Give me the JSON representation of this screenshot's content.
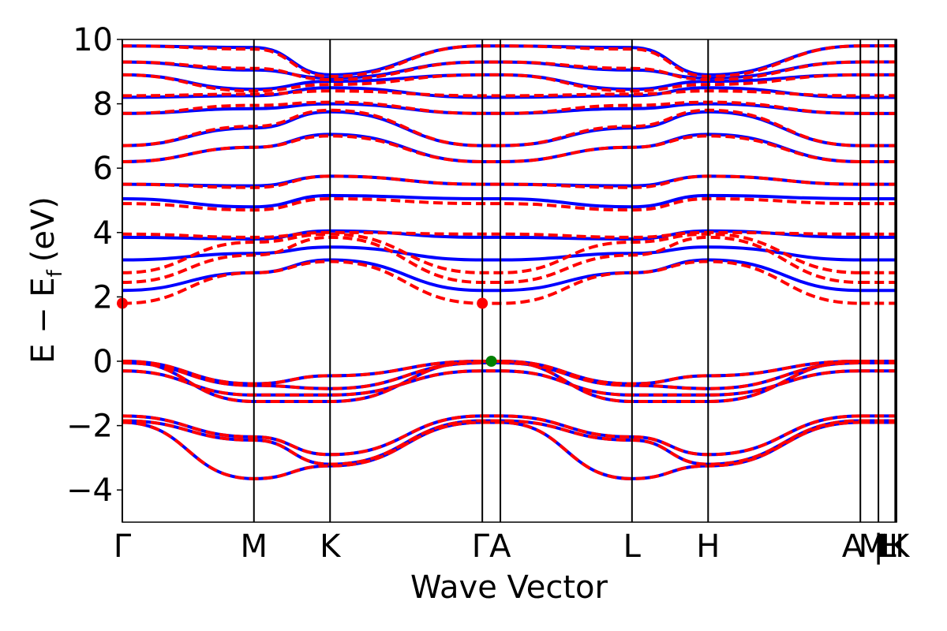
{
  "chart_data": {
    "type": "line",
    "title": "",
    "xlabel": "Wave Vector",
    "ylabel_main": "E − E",
    "ylabel_sub": "f",
    "ylabel_unit": "(eV)",
    "ylim": [
      -5,
      10
    ],
    "yticks": [
      -4,
      -2,
      0,
      2,
      4,
      6,
      8,
      10
    ],
    "ytick_labels": [
      "−4",
      "−2",
      "0",
      "2",
      "4",
      "6",
      "8",
      "10"
    ],
    "x_range": [
      0,
      6.0
    ],
    "high_symmetry_points": [
      {
        "label": "Γ",
        "x": 0.0
      },
      {
        "label": "M",
        "x": 1.02
      },
      {
        "label": "K",
        "x": 1.61
      },
      {
        "label": "Γ",
        "x": 2.79
      },
      {
        "label": "A",
        "x": 2.93
      },
      {
        "label": "L",
        "x": 3.95
      },
      {
        "label": "H",
        "x": 4.54
      },
      {
        "label": "A",
        "x": 5.72
      },
      {
        "label": "M",
        "x": 5.86
      },
      {
        "label": "L",
        "x": 5.99
      },
      {
        "label": "H",
        "x": 6.0
      },
      {
        "label": "K",
        "x": 6.0
      }
    ],
    "tick_label_text": [
      "Γ",
      "M",
      "K",
      "ΓA",
      "L",
      "H",
      "A",
      "M",
      "|",
      "L",
      "H",
      "K"
    ],
    "colors": {
      "series_a": "#0000ff",
      "series_b": "#ff0000",
      "vbm": "#008000",
      "cbm": "#ff0000"
    },
    "series": [
      {
        "style": "solid",
        "color": "#0000ff",
        "bands": [
          [
            -1.85,
            -2.45,
            -3.2,
            -1.85,
            -1.85,
            -2.45,
            -3.2,
            -1.85
          ],
          [
            -1.9,
            -3.65,
            -3.25,
            -1.9,
            -1.9,
            -3.65,
            -3.25,
            -1.9
          ],
          [
            -1.7,
            -2.35,
            -2.9,
            -1.7,
            -1.7,
            -2.35,
            -2.9,
            -1.7
          ],
          [
            -0.3,
            -1.05,
            -1.05,
            -0.3,
            -0.3,
            -1.05,
            -1.05,
            -0.3
          ],
          [
            0.0,
            -1.25,
            -1.25,
            0.0,
            0.0,
            -1.25,
            -1.25,
            0.0
          ],
          [
            0.0,
            -0.7,
            -0.45,
            0.0,
            0.0,
            -0.7,
            -0.45,
            0.0
          ],
          [
            -0.05,
            -0.75,
            -0.85,
            -0.05,
            -0.05,
            -0.75,
            -0.85,
            -0.05
          ],
          [
            2.2,
            2.75,
            3.15,
            2.2,
            2.2,
            2.75,
            3.15,
            2.2
          ],
          [
            3.15,
            3.35,
            3.55,
            3.15,
            3.15,
            3.35,
            3.55,
            3.15
          ],
          [
            3.85,
            3.8,
            4.05,
            3.85,
            3.85,
            3.8,
            4.05,
            3.85
          ],
          [
            5.05,
            4.8,
            5.15,
            5.05,
            5.05,
            4.8,
            5.15,
            5.05
          ],
          [
            5.5,
            5.45,
            5.75,
            5.5,
            5.5,
            5.45,
            5.75,
            5.5
          ],
          [
            6.2,
            6.65,
            7.05,
            6.2,
            6.2,
            6.65,
            7.05,
            6.2
          ],
          [
            6.7,
            7.25,
            7.75,
            6.7,
            6.7,
            7.25,
            7.75,
            6.7
          ],
          [
            7.7,
            7.85,
            8.0,
            7.7,
            7.7,
            7.85,
            8.0,
            7.7
          ],
          [
            8.2,
            8.25,
            8.5,
            8.2,
            8.2,
            8.25,
            8.5,
            8.2
          ],
          [
            8.9,
            8.45,
            8.7,
            8.9,
            8.9,
            8.45,
            8.7,
            8.9
          ],
          [
            9.3,
            9.05,
            8.8,
            9.3,
            9.3,
            9.05,
            8.8,
            9.3
          ],
          [
            9.8,
            9.75,
            8.9,
            9.8,
            9.8,
            9.75,
            8.9,
            9.8
          ]
        ]
      },
      {
        "style": "dashed",
        "color": "#ff0000",
        "bands": [
          [
            -1.85,
            -2.45,
            -3.2,
            -1.85,
            -1.85,
            -2.45,
            -3.2,
            -1.85
          ],
          [
            -1.9,
            -3.65,
            -3.25,
            -1.9,
            -1.9,
            -3.65,
            -3.25,
            -1.9
          ],
          [
            -1.7,
            -2.35,
            -2.9,
            -1.7,
            -1.7,
            -2.35,
            -2.9,
            -1.7
          ],
          [
            -0.3,
            -1.05,
            -1.05,
            -0.3,
            -0.3,
            -1.05,
            -1.05,
            -0.3
          ],
          [
            0.0,
            -1.25,
            -1.25,
            0.0,
            0.0,
            -1.25,
            -1.25,
            0.0
          ],
          [
            0.0,
            -0.7,
            -0.45,
            0.0,
            0.0,
            -0.7,
            -0.45,
            0.0
          ],
          [
            -0.05,
            -0.75,
            -0.85,
            -0.05,
            -0.05,
            -0.75,
            -0.85,
            -0.05
          ],
          [
            1.8,
            2.75,
            3.1,
            1.8,
            1.8,
            2.75,
            3.1,
            1.8
          ],
          [
            2.45,
            3.3,
            3.85,
            2.45,
            2.45,
            3.3,
            3.85,
            2.45
          ],
          [
            2.75,
            3.7,
            3.95,
            2.75,
            2.75,
            3.7,
            3.95,
            2.75
          ],
          [
            3.95,
            3.85,
            4.0,
            3.95,
            3.95,
            3.85,
            4.0,
            3.95
          ],
          [
            4.9,
            4.7,
            5.05,
            4.9,
            4.9,
            4.7,
            5.05,
            4.9
          ],
          [
            5.5,
            5.4,
            5.75,
            5.5,
            5.5,
            5.4,
            5.75,
            5.5
          ],
          [
            6.2,
            6.65,
            7.0,
            6.2,
            6.2,
            6.65,
            7.0,
            6.2
          ],
          [
            6.7,
            7.3,
            7.8,
            6.7,
            6.7,
            7.3,
            7.8,
            6.7
          ],
          [
            7.7,
            7.95,
            8.05,
            7.7,
            7.7,
            7.95,
            8.05,
            7.7
          ],
          [
            8.25,
            8.3,
            8.4,
            8.25,
            8.25,
            8.3,
            8.4,
            8.25
          ],
          [
            8.9,
            8.4,
            8.6,
            8.9,
            8.9,
            8.4,
            8.6,
            8.9
          ],
          [
            9.3,
            9.1,
            8.75,
            9.3,
            9.3,
            9.1,
            8.75,
            9.3
          ],
          [
            9.8,
            9.7,
            8.85,
            9.8,
            9.8,
            9.7,
            8.85,
            9.8
          ]
        ]
      }
    ],
    "markers": [
      {
        "name": "cbm",
        "x": 0.0,
        "y": 1.8,
        "color": "#ff0000"
      },
      {
        "name": "cbm",
        "x": 2.79,
        "y": 1.8,
        "color": "#ff0000"
      },
      {
        "name": "vbm",
        "x": 2.86,
        "y": 0.0,
        "color": "#008000"
      }
    ]
  }
}
